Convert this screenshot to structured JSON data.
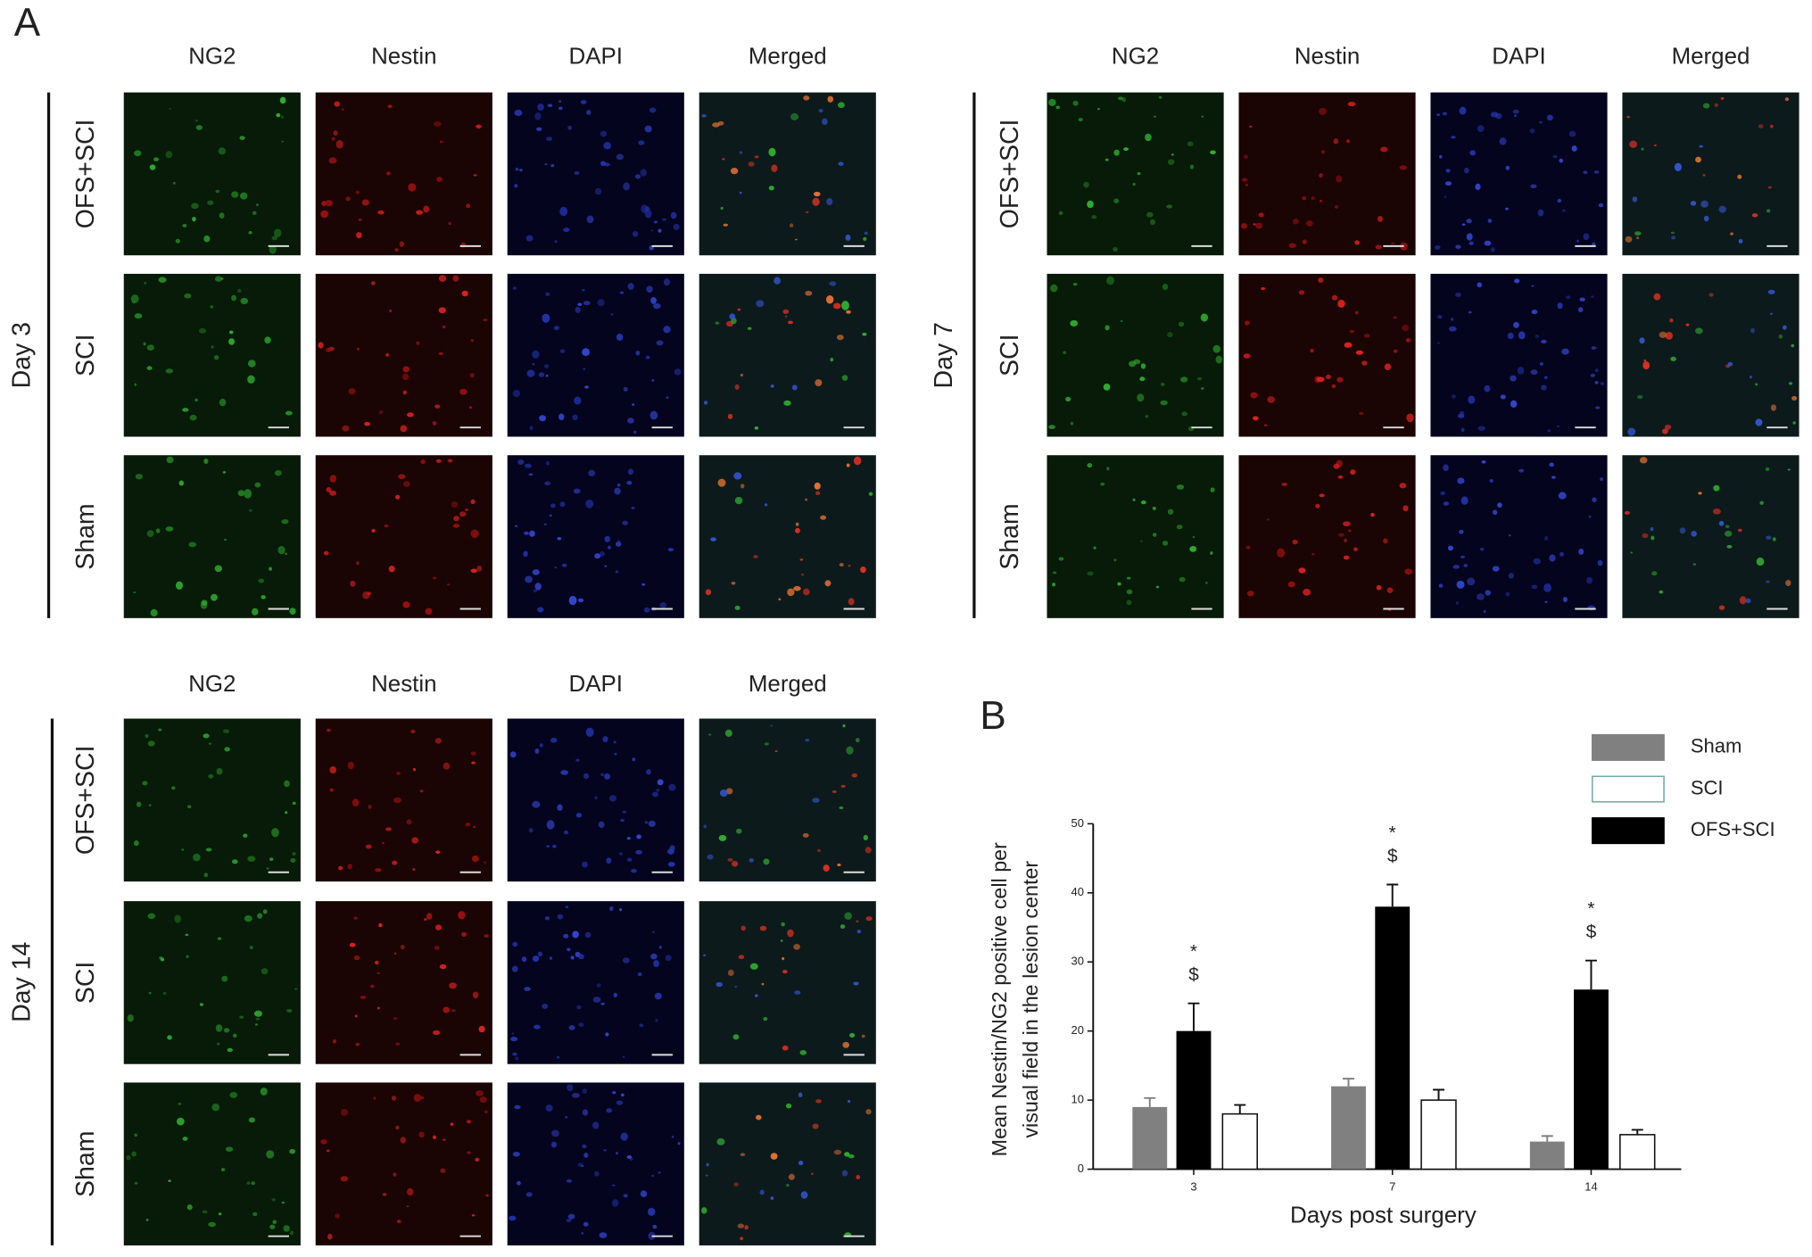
{
  "panel_a": {
    "label": "A",
    "blocks": [
      {
        "day": "Day 3",
        "columns": [
          "NG2",
          "Nestin",
          "DAPI",
          "Merged"
        ],
        "rows": [
          "OFS+SCI",
          "SCI",
          "Sham"
        ]
      },
      {
        "day": "Day 7",
        "columns": [
          "NG2",
          "Nestin",
          "DAPI",
          "Merged"
        ],
        "rows": [
          "OFS+SCI",
          "SCI",
          "Sham"
        ]
      },
      {
        "day": "Day 14",
        "columns": [
          "NG2",
          "Nestin",
          "DAPI",
          "Merged"
        ],
        "rows": [
          "OFS+SCI",
          "SCI",
          "Sham"
        ]
      }
    ]
  },
  "chart_data": {
    "type": "bar",
    "panel_label": "B",
    "xlabel": "Days post surgery",
    "ylabel": [
      "Mean Nestin/NG2 positive cell per",
      "visual  field in the lesion  center"
    ],
    "categories": [
      "3",
      "7",
      "14"
    ],
    "series": [
      {
        "name": "Sham",
        "color": "#808080",
        "values": [
          9,
          12,
          4
        ],
        "errors": [
          1.3,
          1.1,
          0.8
        ]
      },
      {
        "name": "SCI",
        "color": "#ffffff",
        "values": [
          8,
          10,
          5
        ],
        "errors": [
          1.3,
          1.5,
          0.7
        ]
      },
      {
        "name": "OFS+SCI",
        "color": "#000000",
        "values": [
          20,
          38,
          26
        ],
        "errors": [
          4,
          3.2,
          4.2
        ],
        "annotations": [
          [
            "*",
            "$"
          ],
          [
            "*",
            "$"
          ],
          [
            "*",
            "$"
          ]
        ]
      }
    ],
    "ylim": [
      0,
      50
    ],
    "yticks": [
      0,
      10,
      20,
      30,
      40,
      50
    ]
  }
}
